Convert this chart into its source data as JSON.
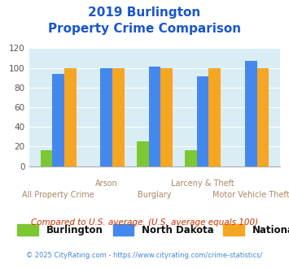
{
  "title_line1": "2019 Burlington",
  "title_line2": "Property Crime Comparison",
  "categories": [
    "All Property Crime",
    "Arson",
    "Burglary",
    "Larceny & Theft",
    "Motor Vehicle Theft"
  ],
  "burlington": [
    16,
    0,
    25,
    16,
    0
  ],
  "north_dakota": [
    94,
    100,
    101,
    91,
    107
  ],
  "national": [
    100,
    100,
    100,
    100,
    100
  ],
  "colors": {
    "burlington": "#7dc832",
    "north_dakota": "#4488ee",
    "national": "#f5a623"
  },
  "ylim": [
    0,
    120
  ],
  "yticks": [
    0,
    20,
    40,
    60,
    80,
    100,
    120
  ],
  "title_color": "#1a56cc",
  "axis_bg_color": "#d9edf5",
  "legend_labels": [
    "Burlington",
    "North Dakota",
    "National"
  ],
  "legend_text_color": "#111111",
  "xlabel_color": "#aa8866",
  "footnote1": "Compared to U.S. average. (U.S. average equals 100)",
  "footnote2": "© 2025 CityRating.com - https://www.cityrating.com/crime-statistics/",
  "footnote1_color": "#cc3300",
  "footnote2_color": "#4488cc"
}
